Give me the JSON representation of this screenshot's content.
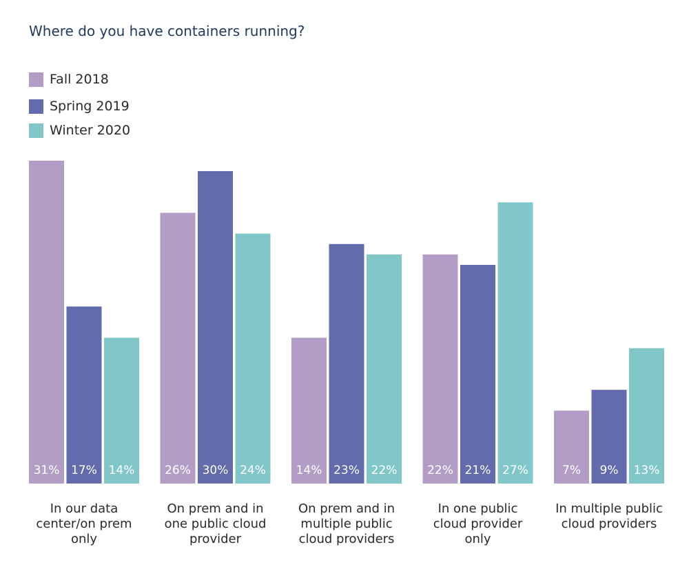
{
  "chart_data": {
    "type": "bar",
    "title": "Where do you have containers running?",
    "categories": [
      [
        "In our data",
        "center/on prem",
        "only"
      ],
      [
        "On prem and in",
        "one public cloud",
        "provider"
      ],
      [
        "On prem and in",
        "multiple public",
        "cloud providers"
      ],
      [
        "In one public",
        "cloud provider",
        "only"
      ],
      [
        "In multiple public",
        "cloud providers"
      ]
    ],
    "series": [
      {
        "name": "Fall 2018",
        "color": "#b39dc6",
        "values": [
          31,
          26,
          14,
          22,
          7
        ]
      },
      {
        "name": "Spring 2019",
        "color": "#626bab",
        "values": [
          17,
          30,
          23,
          21,
          9
        ]
      },
      {
        "name": "Winter 2020",
        "color": "#82c7c8",
        "values": [
          14,
          24,
          22,
          27,
          13
        ]
      }
    ],
    "value_suffix": "%",
    "ylim": [
      0,
      31
    ],
    "grid": false,
    "legend": "top-left"
  }
}
